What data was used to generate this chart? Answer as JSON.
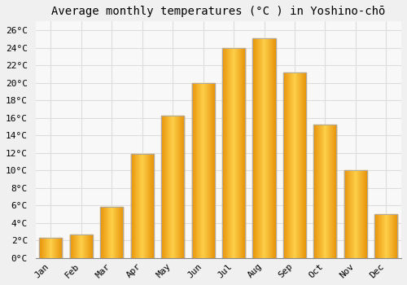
{
  "title": "Average monthly temperatures (°C ) in Yoshino-chō",
  "months": [
    "Jan",
    "Feb",
    "Mar",
    "Apr",
    "May",
    "Jun",
    "Jul",
    "Aug",
    "Sep",
    "Oct",
    "Nov",
    "Dec"
  ],
  "temperatures": [
    2.3,
    2.7,
    5.8,
    11.9,
    16.2,
    20.0,
    24.0,
    25.1,
    21.2,
    15.2,
    10.0,
    5.0
  ],
  "bar_color_center": "#FFD04A",
  "bar_color_edge": "#E8940A",
  "bar_border_color": "#AAAAAA",
  "ylim": [
    0,
    27
  ],
  "ytick_step": 2,
  "background_color": "#f0f0f0",
  "plot_bg_color": "#f8f8f8",
  "grid_color": "#dddddd",
  "title_fontsize": 10,
  "tick_fontsize": 8,
  "font_family": "monospace",
  "bar_width": 0.75
}
